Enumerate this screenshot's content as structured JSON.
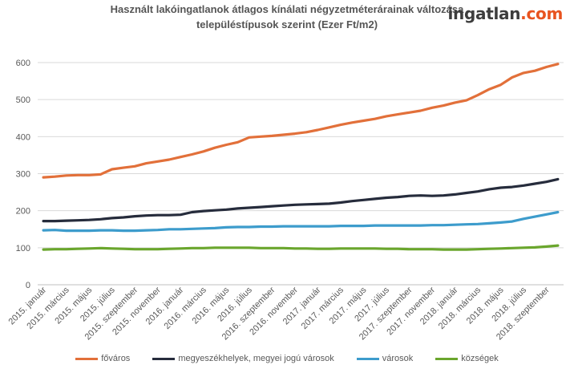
{
  "brand": {
    "part1": "ingatlan",
    "part2": ".com",
    "color1": "#3d3d3d",
    "color2": "#e8531f"
  },
  "chart_data": {
    "type": "line",
    "title_line1": "Használt lakóingatlanok átlagos kínálati négyzetméterárainak változása",
    "title_line2": "településtípusok szerint (Ezer Ft/m2)",
    "xlabel": "",
    "ylabel": "",
    "ylim": [
      0,
      600
    ],
    "yticks": [
      0,
      100,
      200,
      300,
      400,
      500,
      600
    ],
    "grid": true,
    "legend_position": "bottom",
    "x_tick_labels": [
      "2015. január",
      "2015. március",
      "2015. május",
      "2015. július",
      "2015. szeptember",
      "2015. november",
      "2016. január",
      "2016. március",
      "2016. május",
      "2016. július",
      "2016. szeptember",
      "2016. november",
      "2017. január",
      "2017. március",
      "2017. május",
      "2017. július",
      "2017. szeptember",
      "2017. november",
      "2018. január",
      "2018. március",
      "2018. május",
      "2018. július",
      "2018. szeptember"
    ],
    "x": [
      "2015. január",
      "2015. február",
      "2015. március",
      "2015. április",
      "2015. május",
      "2015. június",
      "2015. július",
      "2015. augusztus",
      "2015. szeptember",
      "2015. október",
      "2015. november",
      "2015. december",
      "2016. január",
      "2016. február",
      "2016. március",
      "2016. április",
      "2016. május",
      "2016. június",
      "2016. július",
      "2016. augusztus",
      "2016. szeptember",
      "2016. október",
      "2016. november",
      "2016. december",
      "2017. január",
      "2017. február",
      "2017. március",
      "2017. április",
      "2017. május",
      "2017. június",
      "2017. július",
      "2017. augusztus",
      "2017. szeptember",
      "2017. október",
      "2017. november",
      "2017. december",
      "2018. január",
      "2018. február",
      "2018. március",
      "2018. április",
      "2018. május",
      "2018. június",
      "2018. július",
      "2018. augusztus",
      "2018. szeptember",
      "2018. október"
    ],
    "series": [
      {
        "name": "főváros",
        "color": "#e2703a",
        "values": [
          290,
          292,
          295,
          296,
          296,
          298,
          312,
          316,
          320,
          328,
          333,
          338,
          345,
          352,
          360,
          370,
          378,
          385,
          398,
          400,
          402,
          405,
          408,
          412,
          418,
          425,
          432,
          438,
          443,
          448,
          455,
          460,
          465,
          470,
          478,
          484,
          492,
          498,
          512,
          528,
          540,
          560,
          572,
          578,
          588,
          596
        ]
      },
      {
        "name": "megyeszékhelyek, megyei jogú városok",
        "color": "#262c3c",
        "values": [
          172,
          172,
          173,
          174,
          175,
          177,
          180,
          182,
          185,
          187,
          188,
          188,
          189,
          196,
          199,
          201,
          203,
          206,
          208,
          210,
          212,
          214,
          216,
          217,
          218,
          219,
          222,
          226,
          229,
          232,
          235,
          237,
          240,
          241,
          240,
          241,
          244,
          248,
          252,
          258,
          262,
          264,
          268,
          273,
          278,
          285
        ]
      },
      {
        "name": "városok",
        "color": "#3d9ccc",
        "values": [
          147,
          148,
          146,
          146,
          146,
          147,
          147,
          146,
          146,
          147,
          148,
          150,
          150,
          151,
          152,
          153,
          155,
          156,
          156,
          157,
          157,
          158,
          158,
          158,
          158,
          158,
          159,
          159,
          159,
          160,
          160,
          160,
          160,
          160,
          161,
          161,
          162,
          163,
          164,
          166,
          168,
          171,
          178,
          184,
          190,
          196
        ]
      },
      {
        "name": "községek",
        "color": "#6aa62d",
        "values": [
          95,
          96,
          96,
          97,
          98,
          99,
          98,
          97,
          96,
          96,
          96,
          97,
          98,
          99,
          99,
          100,
          100,
          100,
          100,
          99,
          99,
          99,
          98,
          98,
          97,
          97,
          98,
          98,
          98,
          98,
          97,
          97,
          96,
          96,
          96,
          95,
          95,
          95,
          96,
          97,
          98,
          99,
          100,
          101,
          103,
          106
        ]
      }
    ]
  }
}
